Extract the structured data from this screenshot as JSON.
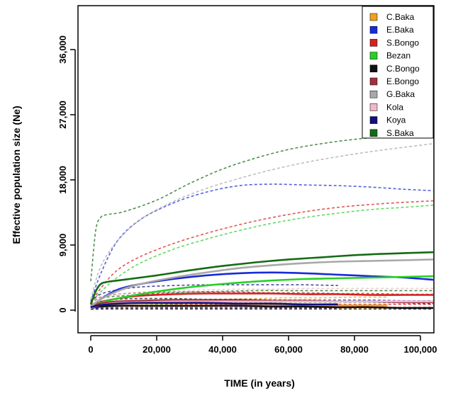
{
  "chart_data": {
    "type": "line",
    "title": "",
    "xlabel": "TIME (in years)",
    "ylabel": "Effective population size (Ne)",
    "xlim": [
      0,
      104000
    ],
    "ylim": [
      -1200,
      42000
    ],
    "x_ticks": [
      0,
      20000,
      40000,
      60000,
      80000,
      100000
    ],
    "x_tick_labels": [
      "0",
      "20,000",
      "40,000",
      "60,000",
      "80,000",
      "100,000"
    ],
    "y_ticks": [
      0,
      9000,
      18000,
      27000,
      36000
    ],
    "y_tick_labels": [
      "0",
      "9,000",
      "18,000",
      "27,000",
      "36,000"
    ],
    "legend_position": "top-right",
    "series": [
      {
        "name": "C.Baka",
        "color": "#f0a020",
        "x": [
          0,
          2000,
          5000,
          10000,
          20000,
          30000,
          40000,
          50000,
          60000,
          70000,
          80000,
          90000
        ],
        "median": [
          500,
          600,
          600,
          650,
          650,
          650,
          650,
          650,
          650,
          650,
          650,
          650
        ],
        "lower": [
          200,
          200,
          250,
          250,
          250,
          250,
          250,
          250,
          250,
          250,
          250,
          250
        ],
        "upper": [
          900,
          1000,
          1100,
          1200,
          1300,
          1400,
          1500,
          1600,
          1700,
          1700,
          1800,
          1800
        ]
      },
      {
        "name": "E.Baka",
        "color": "#1a2ad8",
        "x": [
          0,
          3000,
          8000,
          15000,
          25000,
          35000,
          45000,
          55000,
          65000,
          75000,
          85000,
          95000,
          104000
        ],
        "median": [
          500,
          1500,
          2800,
          3600,
          4300,
          4800,
          5100,
          5200,
          5100,
          4900,
          4700,
          4500,
          4200
        ],
        "lower": [
          200,
          600,
          1000,
          1300,
          1400,
          1400,
          1400,
          1400,
          1400,
          1400,
          1400,
          1300,
          1300
        ],
        "upper": [
          1200,
          5000,
          9500,
          12500,
          14800,
          16300,
          17200,
          17400,
          17300,
          17200,
          17000,
          16700,
          16500
        ]
      },
      {
        "name": "S.Bongo",
        "color": "#d62020",
        "x": [
          0,
          3000,
          8000,
          15000,
          25000,
          35000,
          45000,
          55000,
          65000,
          75000,
          85000,
          95000,
          104000
        ],
        "median": [
          400,
          1100,
          1600,
          2000,
          2200,
          2300,
          2300,
          2300,
          2200,
          2200,
          2100,
          2100,
          2100
        ],
        "lower": [
          200,
          400,
          600,
          700,
          800,
          800,
          800,
          800,
          800,
          800,
          800,
          800,
          800
        ],
        "upper": [
          900,
          3000,
          5500,
          7400,
          9200,
          10600,
          11800,
          12800,
          13600,
          14200,
          14600,
          14900,
          15100
        ]
      },
      {
        "name": "Bezan",
        "color": "#27d027",
        "x": [
          0,
          3000,
          8000,
          15000,
          25000,
          35000,
          45000,
          55000,
          65000,
          75000,
          85000,
          95000,
          104000
        ],
        "median": [
          400,
          1000,
          1600,
          2200,
          2900,
          3400,
          3800,
          4100,
          4300,
          4400,
          4500,
          4600,
          4700
        ],
        "lower": [
          200,
          300,
          500,
          700,
          900,
          1000,
          1100,
          1100,
          1100,
          1100,
          1100,
          1100,
          1100
        ],
        "upper": [
          900,
          2500,
          4500,
          6500,
          8400,
          9800,
          11000,
          12000,
          12800,
          13400,
          13900,
          14200,
          14500
        ]
      },
      {
        "name": "C.Bongo",
        "color": "#111111",
        "x": [
          0,
          3000,
          8000,
          15000,
          25000,
          35000,
          45000,
          55000,
          65000,
          75000,
          85000,
          95000,
          104000
        ],
        "median": [
          300,
          500,
          600,
          600,
          600,
          600,
          600,
          500,
          500,
          400,
          400,
          300,
          300
        ],
        "lower": [
          100,
          150,
          150,
          150,
          150,
          150,
          150,
          150,
          150,
          150,
          150,
          150,
          150
        ],
        "upper": [
          700,
          1200,
          1500,
          1600,
          1600,
          1500,
          1500,
          1400,
          1300,
          1200,
          1100,
          1000,
          900
        ]
      },
      {
        "name": "E.Bongo",
        "color": "#a0303a",
        "x": [
          0,
          3000,
          8000,
          15000,
          25000,
          35000,
          45000,
          55000,
          65000,
          75000,
          85000,
          95000,
          104000
        ],
        "median": [
          400,
          900,
          1200,
          1300,
          1400,
          1400,
          1400,
          1300,
          1300,
          1200,
          1200,
          1100,
          1100
        ],
        "lower": [
          150,
          300,
          400,
          400,
          400,
          400,
          400,
          400,
          400,
          400,
          400,
          400,
          400
        ],
        "upper": [
          900,
          1800,
          2200,
          2400,
          2500,
          2500,
          2500,
          2400,
          2400,
          2300,
          2300,
          2200,
          2200
        ]
      },
      {
        "name": "G.Baka",
        "color": "#a8a8a8",
        "x": [
          0,
          3000,
          8000,
          15000,
          25000,
          35000,
          45000,
          55000,
          65000,
          75000,
          85000,
          95000,
          104000
        ],
        "median": [
          500,
          1500,
          2600,
          3600,
          4500,
          5200,
          5800,
          6200,
          6500,
          6700,
          6800,
          6900,
          7000
        ],
        "lower": [
          200,
          400,
          800,
          1000,
          1100,
          1100,
          1100,
          1100,
          1100,
          1100,
          1100,
          1100,
          1100
        ],
        "upper": [
          1500,
          6000,
          9500,
          12500,
          15000,
          16800,
          18200,
          19400,
          20400,
          21200,
          21900,
          22500,
          23000
        ]
      },
      {
        "name": "Kola",
        "color": "#f0b8c8",
        "x": [
          0,
          3000,
          8000,
          15000,
          25000,
          35000,
          45000,
          55000,
          65000,
          75000,
          85000,
          95000,
          104000
        ],
        "median": [
          300,
          700,
          1000,
          1100,
          1200,
          1200,
          1200,
          1200,
          1200,
          1200,
          1200,
          1200,
          1200
        ],
        "lower": [
          100,
          300,
          400,
          400,
          400,
          400,
          400,
          400,
          400,
          400,
          400,
          400,
          400
        ],
        "upper": [
          800,
          1700,
          2200,
          2500,
          2700,
          2800,
          2900,
          2900,
          3000,
          3000,
          3000,
          3000,
          3000
        ]
      },
      {
        "name": "Koya",
        "color": "#101080",
        "x": [
          0,
          3000,
          8000,
          15000,
          25000,
          35000,
          45000,
          55000,
          65000,
          75000
        ],
        "median": [
          400,
          700,
          900,
          1000,
          1000,
          1000,
          900,
          900,
          800,
          800
        ],
        "lower": [
          150,
          250,
          300,
          300,
          300,
          300,
          300,
          300,
          300,
          300
        ],
        "upper": [
          1200,
          2200,
          2800,
          3200,
          3400,
          3500,
          3500,
          3500,
          3500,
          3400
        ]
      },
      {
        "name": "S.Baka",
        "color": "#156b15",
        "x": [
          0,
          1500,
          3000,
          5000,
          10000,
          20000,
          30000,
          40000,
          50000,
          60000,
          70000,
          80000,
          90000,
          104000
        ],
        "median": [
          800,
          2600,
          3600,
          3900,
          4200,
          4800,
          5500,
          6100,
          6600,
          7000,
          7300,
          7600,
          7800,
          8000
        ],
        "lower": [
          300,
          1000,
          1500,
          1800,
          2000,
          2300,
          2500,
          2600,
          2700,
          2700,
          2700,
          2700,
          2700,
          2700
        ],
        "upper": [
          4000,
          11000,
          12800,
          13200,
          13600,
          15200,
          17500,
          19500,
          21000,
          22200,
          23000,
          23600,
          24000,
          24300
        ]
      }
    ]
  }
}
